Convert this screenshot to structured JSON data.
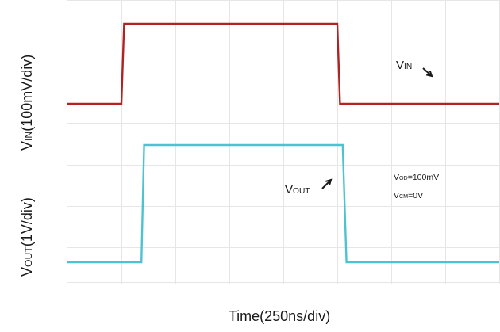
{
  "chart_data": {
    "type": "line",
    "title": "",
    "xlabel": "Time(250ns/div)",
    "x_divisions": 8,
    "grid": true,
    "series": [
      {
        "name": "VIN",
        "color": "#b22222",
        "trace_label": {
          "main": "V",
          "sub": "IN"
        },
        "axis_label": {
          "main": "V",
          "sub": "IN",
          "rest": "(100mV/div)"
        },
        "arrow": "south-east",
        "points": [
          [
            0,
            0
          ],
          [
            1.0,
            0
          ],
          [
            1.05,
            1
          ],
          [
            5.0,
            1
          ],
          [
            5.05,
            0
          ],
          [
            8,
            0
          ]
        ]
      },
      {
        "name": "VOUT",
        "color": "#4ec3d0",
        "trace_label": {
          "main": "V",
          "sub": "OUT"
        },
        "axis_label": {
          "main": "V",
          "sub": "OUT",
          "rest": "(1V/div)"
        },
        "arrow": "north-east",
        "points": [
          [
            0,
            0
          ],
          [
            1.37,
            0
          ],
          [
            1.42,
            1
          ],
          [
            5.1,
            1
          ],
          [
            5.17,
            0
          ],
          [
            8,
            0
          ]
        ]
      }
    ],
    "annotations": [
      {
        "main": "V",
        "sub": "OD",
        "rest": "=100mV"
      },
      {
        "main": "V",
        "sub": "CM",
        "rest": "=0V"
      }
    ]
  }
}
